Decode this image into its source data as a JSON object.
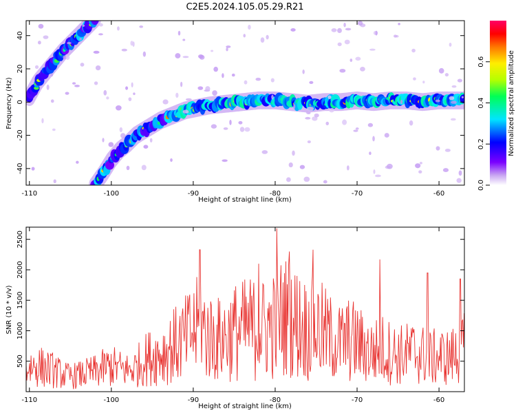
{
  "figure": {
    "title": "C2E5.2024.105.05.29.R21"
  },
  "chart_data": [
    {
      "type": "heatmap",
      "xlabel": "Height of straight line (km)",
      "ylabel": "Frequency (Hz)",
      "xlim": [
        -110.4,
        -56.9
      ],
      "ylim": [
        -50,
        49
      ],
      "xticks": [
        -110,
        -100,
        -90,
        -80,
        -70,
        -60
      ],
      "yticks": [
        -40,
        -20,
        0,
        20,
        40
      ],
      "colorbar": {
        "label": "Normalized spectral amplitude",
        "range": [
          0.0,
          0.8
        ],
        "ticks": [
          0.0,
          0.2,
          0.4,
          0.6
        ]
      },
      "ridges": [
        {
          "name": "",
          "x": [
            -110.0,
            -109.0,
            -108.0,
            -107.0,
            -106.0,
            -105.0,
            -104.0,
            -103.0,
            -102.0
          ],
          "y": [
            3,
            12,
            18,
            24,
            30,
            35,
            40,
            45,
            50
          ]
        },
        {
          "name": "",
          "x": [
            -102.0,
            -101.0,
            -100.0,
            -99.0,
            -98.0,
            -97.0,
            -96.0,
            -95.0,
            -94.0,
            -93.0,
            -92.0,
            -91.0,
            -90.0,
            -88.0,
            -86.0,
            -84.0,
            -82.0,
            -80.0,
            -78.0,
            -76.0,
            -74.0,
            -72.0,
            -70.0,
            -68.0,
            -66.0,
            -64.0,
            -62.0,
            -60.0,
            -58.0,
            -57.0
          ],
          "y": [
            -50,
            -43,
            -35,
            -29,
            -25,
            -20,
            -17,
            -14,
            -11,
            -9,
            -7,
            -5,
            -4,
            -2,
            -1,
            0,
            1,
            1,
            0,
            -1,
            0,
            0,
            1,
            0,
            1,
            1,
            0,
            1,
            1,
            1
          ]
        }
      ]
    },
    {
      "type": "line",
      "xlabel": "Height of straight line (km)",
      "ylabel": "SNR (10 * v/v)",
      "xlim": [
        -110.4,
        -56.9
      ],
      "ylim": [
        0,
        2700
      ],
      "xticks": [
        -110,
        -100,
        -90,
        -80,
        -70,
        -60
      ],
      "yticks": [
        500,
        1000,
        1500,
        2000,
        2500
      ],
      "color": "#e8322f",
      "series": [
        {
          "name": "",
          "x": [
            -110.4,
            -109,
            -108,
            -107,
            -106,
            -105,
            -104,
            -103,
            -102,
            -101,
            -100,
            -99,
            -98,
            -97,
            -96,
            -95,
            -94,
            -93,
            -92,
            -91,
            -90,
            -89,
            -88,
            -87,
            -86,
            -85,
            -84,
            -83,
            -82,
            -81,
            -80,
            -79,
            -78,
            -77,
            -76,
            -75,
            -74,
            -73,
            -72,
            -71,
            -70,
            -69,
            -68,
            -67,
            -66,
            -65,
            -64,
            -63,
            -62,
            -61,
            -60,
            -59,
            -58,
            -57
          ],
          "y": [
            400,
            420,
            380,
            350,
            280,
            250,
            270,
            300,
            330,
            380,
            420,
            380,
            350,
            400,
            520,
            580,
            620,
            700,
            780,
            850,
            1000,
            1050,
            900,
            850,
            900,
            980,
            1000,
            1050,
            1000,
            1050,
            1100,
            1250,
            1150,
            1100,
            1000,
            1050,
            950,
            850,
            800,
            850,
            800,
            700,
            650,
            700,
            650,
            600,
            620,
            650,
            600,
            550,
            580,
            560,
            600,
            700
          ],
          "peaks": [
            {
              "x": -89.2,
              "y": 2330
            },
            {
              "x": -82.0,
              "y": 2100
            },
            {
              "x": -79.8,
              "y": 2680
            },
            {
              "x": -78.3,
              "y": 2300
            },
            {
              "x": -75.4,
              "y": 2330
            },
            {
              "x": -67.2,
              "y": 2170
            },
            {
              "x": -61.4,
              "y": 1950
            },
            {
              "x": -57.4,
              "y": 1850
            }
          ]
        }
      ]
    }
  ]
}
